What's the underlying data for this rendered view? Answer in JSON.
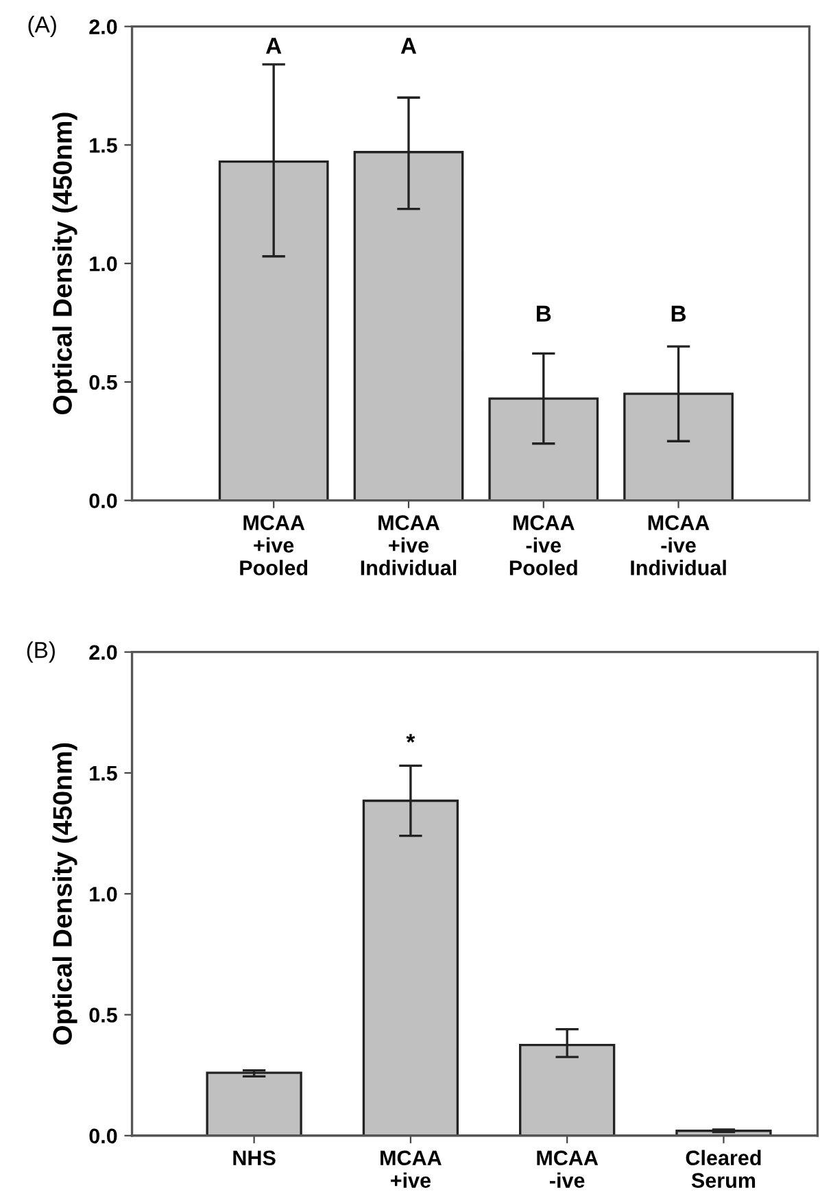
{
  "chart_data": [
    {
      "type": "bar",
      "title": "(A)",
      "ylabel": "Optical Density (450nm)",
      "categories": [
        "MCAA\n+ive\nPooled",
        "MCAA\n+ive\nIndividual",
        "MCAA\n-ive\nPooled",
        "MCAA\n-ive\nIndividual"
      ],
      "values": [
        1.43,
        1.47,
        0.43,
        0.45
      ],
      "color": "#c0c0c0",
      "errors": [
        [
          1.03,
          1.84
        ],
        [
          1.23,
          1.7
        ],
        [
          0.24,
          0.62
        ],
        [
          0.25,
          0.65
        ]
      ],
      "ylim": [
        0,
        2.0
      ],
      "yticks": [
        {
          "value": 0,
          "label": "0.0"
        },
        {
          "value": 0.5,
          "label": "0.5"
        },
        {
          "value": 1,
          "label": "1.0"
        },
        {
          "value": 1.5,
          "label": "1.5"
        },
        {
          "value": 2,
          "label": "2.0"
        }
      ],
      "annotations": [
        "A",
        "A",
        "B",
        "B"
      ],
      "grid": false,
      "legend": false
    },
    {
      "type": "bar",
      "title": "(B)",
      "ylabel": "Optical Density (450nm)",
      "categories": [
        "NHS",
        "MCAA\n+ive",
        "MCAA\n-ive",
        "Cleared\nSerum"
      ],
      "values": [
        0.26,
        1.385,
        0.375,
        0.02
      ],
      "color": "#c0c0c0",
      "errors": [
        [
          0.245,
          0.27
        ],
        [
          1.24,
          1.53
        ],
        [
          0.325,
          0.44
        ],
        [
          0.015,
          0.025
        ]
      ],
      "ylim": [
        0,
        2.0
      ],
      "yticks": [
        {
          "value": 0,
          "label": "0.0"
        },
        {
          "value": 0.5,
          "label": "0.5"
        },
        {
          "value": 1,
          "label": "1.0"
        },
        {
          "value": 1.5,
          "label": "1.5"
        },
        {
          "value": 2,
          "label": "2.0"
        }
      ],
      "annotations": [
        "*"
      ],
      "grid": false,
      "legend": false
    }
  ]
}
